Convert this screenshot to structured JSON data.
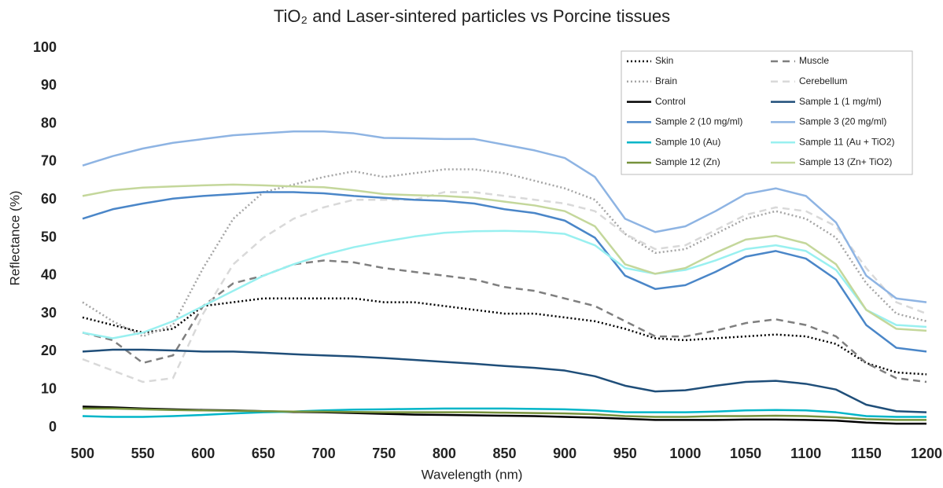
{
  "chart_data": {
    "type": "line",
    "title": "TiO₂ and Laser-sintered particles vs Porcine tissues",
    "x_label": "Wavelength (nm)",
    "y_label": "Reflectance (%)",
    "xlim": [
      500,
      1200
    ],
    "xticks": [
      500,
      550,
      600,
      650,
      700,
      750,
      800,
      850,
      900,
      950,
      1000,
      1050,
      1100,
      1150,
      1200
    ],
    "ylim": [
      0,
      100
    ],
    "yticks": [
      0,
      10,
      20,
      30,
      40,
      50,
      60,
      70,
      80,
      90,
      100
    ],
    "grid": false,
    "legend": "upper right",
    "x": [
      500,
      525,
      550,
      575,
      600,
      625,
      650,
      675,
      700,
      725,
      750,
      775,
      800,
      825,
      850,
      875,
      900,
      925,
      950,
      975,
      1000,
      1025,
      1050,
      1075,
      1100,
      1125,
      1150,
      1175,
      1200
    ],
    "series": [
      {
        "name": "Skin",
        "color": "#000000",
        "style": "dotted",
        "values": [
          29,
          27,
          25,
          26,
          32,
          33,
          34,
          34,
          34,
          34,
          33,
          33,
          32,
          31,
          30,
          30,
          29,
          28,
          26,
          23.5,
          23,
          23.5,
          24,
          24.5,
          24,
          22,
          17,
          14.5,
          14
        ]
      },
      {
        "name": "Muscle",
        "color": "#7f7f7f",
        "style": "dashed",
        "values": [
          25,
          23,
          17,
          19,
          32,
          38,
          40,
          43,
          44,
          43.5,
          42,
          41,
          40,
          39,
          37,
          36,
          34,
          32,
          28,
          24,
          24,
          25.5,
          27.5,
          28.5,
          27,
          24,
          17,
          13,
          12
        ]
      },
      {
        "name": "Brain",
        "color": "#a5a5a5",
        "style": "dotted",
        "values": [
          33,
          28,
          24,
          27,
          42,
          55,
          62,
          64,
          66,
          67.5,
          66,
          67,
          68,
          68,
          67,
          65,
          63,
          60,
          51,
          46,
          47,
          51,
          55,
          57,
          55,
          50,
          38,
          30,
          28
        ]
      },
      {
        "name": "Cerebellum",
        "color": "#d9d9d9",
        "style": "dashed",
        "values": [
          18,
          15,
          12,
          13,
          30,
          43,
          50,
          55,
          58,
          60,
          60,
          60,
          62,
          62,
          61,
          60,
          59,
          57,
          51,
          47,
          48,
          52,
          56,
          58,
          57,
          53,
          42,
          33,
          30
        ]
      },
      {
        "name": "Control",
        "color": "#000000",
        "style": "solid",
        "values": [
          5.5,
          5.3,
          5,
          4.8,
          4.6,
          4.5,
          4.3,
          4.1,
          4,
          3.8,
          3.6,
          3.4,
          3.3,
          3.2,
          3.1,
          3,
          2.8,
          2.6,
          2.3,
          2,
          2,
          2,
          2.1,
          2.1,
          2,
          1.8,
          1.3,
          1,
          1
        ]
      },
      {
        "name": "Sample 1 (1 mg/ml)",
        "color": "#1f4e79",
        "style": "solid",
        "values": [
          20,
          20.5,
          20.5,
          20.3,
          20,
          20,
          19.7,
          19.3,
          19,
          18.7,
          18.3,
          17.8,
          17.3,
          16.8,
          16.2,
          15.7,
          15,
          13.5,
          11,
          9.5,
          9.8,
          11,
          12,
          12.3,
          11.5,
          10,
          6,
          4.3,
          4
        ]
      },
      {
        "name": "Sample 2 (10 mg/ml)",
        "color": "#4a86c8",
        "style": "solid",
        "values": [
          55,
          57.5,
          59,
          60.3,
          61,
          61.5,
          62,
          62,
          61.7,
          61,
          60.5,
          60,
          59.7,
          59,
          57.5,
          56.5,
          54.5,
          50,
          40,
          36.5,
          37.5,
          41,
          45,
          46.5,
          44.5,
          39,
          27,
          21,
          20
        ]
      },
      {
        "name": "Sample 3 (20 mg/ml)",
        "color": "#8eb4e3",
        "style": "solid",
        "values": [
          69,
          71.5,
          73.5,
          75,
          76,
          77,
          77.5,
          78,
          78,
          77.5,
          76.3,
          76.2,
          76,
          76,
          74.5,
          73,
          71,
          66,
          55,
          51.5,
          53,
          57,
          61.5,
          63,
          61,
          54,
          40,
          34,
          33
        ]
      },
      {
        "name": "Sample 10 (Au)",
        "color": "#00b5c8",
        "style": "solid",
        "values": [
          3,
          2.8,
          2.8,
          3,
          3.3,
          3.7,
          4,
          4.2,
          4.5,
          4.7,
          4.8,
          4.9,
          5,
          5,
          5,
          4.9,
          4.8,
          4.5,
          4,
          4,
          4,
          4.2,
          4.5,
          4.6,
          4.5,
          4,
          3,
          2.8,
          2.8
        ]
      },
      {
        "name": "Sample 11 (Au + TiO2)",
        "color": "#99f0f0",
        "style": "solid",
        "values": [
          25,
          23.5,
          25,
          28,
          32,
          36,
          40,
          43,
          45.5,
          47.5,
          49,
          50.3,
          51.3,
          51.7,
          51.8,
          51.6,
          51,
          48,
          42,
          40.5,
          41.5,
          44,
          47,
          48,
          46.5,
          41.5,
          31,
          27,
          26.5
        ]
      },
      {
        "name": "Sample 12 (Zn)",
        "color": "#76923c",
        "style": "solid",
        "values": [
          5,
          5,
          4.8,
          4.6,
          4.5,
          4.4,
          4.3,
          4.2,
          4.2,
          4.1,
          4,
          4,
          4,
          4,
          3.9,
          3.8,
          3.7,
          3.5,
          3,
          2.8,
          2.8,
          3,
          3,
          3.1,
          3,
          2.7,
          2.2,
          2,
          2
        ]
      },
      {
        "name": "Sample 13 (Zn+ TiO2)",
        "color": "#c4d79b",
        "style": "solid",
        "values": [
          61,
          62.5,
          63.2,
          63.5,
          63.8,
          64,
          63.8,
          63.5,
          63.3,
          62.5,
          61.5,
          61.2,
          61,
          60.5,
          59.5,
          58.5,
          57,
          53,
          43,
          40.5,
          42,
          46,
          49.5,
          50.5,
          48.5,
          43,
          31,
          26,
          25.5
        ]
      }
    ]
  }
}
